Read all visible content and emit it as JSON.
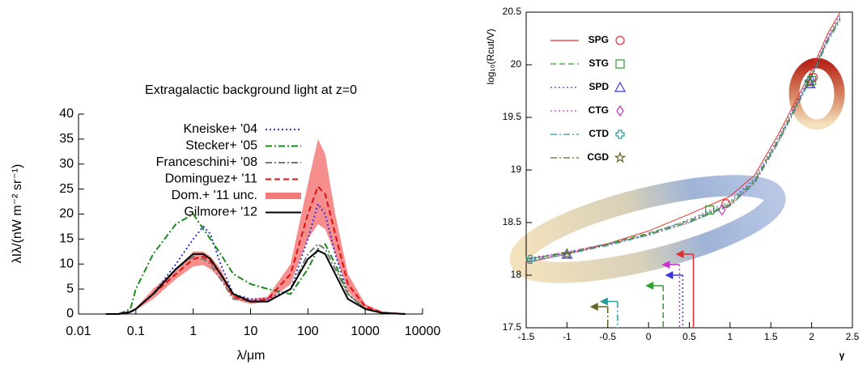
{
  "chart_data": [
    {
      "type": "line",
      "title": "Extragalactic background light at z=0",
      "xlabel": "λ/μm",
      "ylabel": "λIλ/(nW m⁻² sr⁻¹)",
      "xscale": "log",
      "xlim": [
        0.01,
        10000
      ],
      "xticks": [
        0.01,
        0.1,
        1,
        10,
        100,
        1000,
        10000
      ],
      "ylim": [
        0,
        40
      ],
      "yticks": [
        0,
        5,
        10,
        15,
        20,
        25,
        30,
        35,
        40
      ],
      "x": [
        0.03,
        0.05,
        0.08,
        0.1,
        0.2,
        0.5,
        1,
        1.5,
        2,
        3,
        5,
        10,
        20,
        50,
        100,
        150,
        200,
        300,
        500,
        1000,
        2000,
        5000
      ],
      "series": [
        {
          "name": "Kneiske+ '04",
          "color": "#3333dd",
          "style": "dotted",
          "values": [
            0,
            0,
            0.5,
            1,
            4,
            10,
            15,
            17.5,
            16,
            10,
            4,
            3,
            3,
            5,
            15,
            22,
            20,
            12,
            4,
            1,
            0.3,
            0
          ]
        },
        {
          "name": "Stecker+ '05",
          "color": "#1a8a1a",
          "style": "dashdot",
          "values": [
            0,
            0,
            1,
            5,
            12,
            18,
            20,
            17,
            15,
            12,
            8,
            6,
            5,
            4,
            9,
            13,
            14,
            10,
            4,
            1,
            0.2,
            0
          ]
        },
        {
          "name": "Franceschini+ '08",
          "color": "#777777",
          "style": "dashdot",
          "values": [
            0,
            0,
            0.5,
            1,
            4,
            9,
            11.5,
            11,
            10,
            7,
            3,
            2.5,
            2.5,
            5,
            12,
            14,
            13,
            9,
            4,
            1,
            0.2,
            0
          ]
        },
        {
          "name": "Dominguez+ '11",
          "color": "#dd1111",
          "style": "dashed",
          "values": [
            0,
            0,
            0.3,
            1,
            4,
            8,
            11,
            11.5,
            10.5,
            8,
            3.5,
            2.5,
            3,
            8,
            20,
            25.5,
            24,
            16,
            6,
            1.5,
            0.3,
            0
          ]
        },
        {
          "name": "Dom.+ '11 unc.",
          "color": "#f47a7a",
          "style": "band",
          "low": [
            0,
            0,
            0.2,
            0.8,
            3,
            7,
            9.5,
            9.8,
            9,
            7,
            3,
            2,
            2.5,
            6,
            15,
            18,
            17,
            12,
            4.5,
            1,
            0.2,
            0
          ],
          "high": [
            0,
            0,
            0.4,
            1.2,
            5,
            9,
            12.5,
            12.5,
            11.5,
            9,
            4,
            3,
            3.5,
            10,
            26,
            35,
            32,
            20,
            8,
            2,
            0.4,
            0
          ]
        },
        {
          "name": "Gilmore+ '12",
          "color": "#000000",
          "style": "solid",
          "values": [
            0,
            0,
            0.4,
            1,
            4,
            9,
            12,
            12,
            11,
            8,
            4,
            2.5,
            2.5,
            5,
            11,
            12.7,
            12,
            8,
            3,
            1,
            0.2,
            0
          ]
        }
      ]
    },
    {
      "type": "line",
      "xlabel": "γ",
      "ylabel": "log₁₀(Rcut/V)",
      "xlim": [
        -1.5,
        2.5
      ],
      "xticks": [
        -1.5,
        -1,
        -0.5,
        0,
        0.5,
        1,
        1.5,
        2,
        2.5
      ],
      "ylim": [
        17.5,
        20.5
      ],
      "yticks": [
        17.5,
        18,
        18.5,
        19,
        19.5,
        20,
        20.5
      ],
      "x": [
        -1.5,
        -1,
        -0.5,
        0,
        0.5,
        1,
        1.3,
        1.6,
        1.8,
        2,
        2.2,
        2.35
      ],
      "series": [
        {
          "name": "SPG",
          "color": "#e03030",
          "style": "solid",
          "marker": "circle",
          "values": [
            18.12,
            18.2,
            18.3,
            18.42,
            18.58,
            18.75,
            18.95,
            19.35,
            19.65,
            19.95,
            20.3,
            20.5
          ],
          "points_x": [
            0.95,
            2.02
          ],
          "points_y": [
            18.68,
            19.88
          ],
          "limit_x": 0.55,
          "limit_y": 18.2
        },
        {
          "name": "STG",
          "color": "#2ea02e",
          "style": "dashed",
          "marker": "square",
          "values": [
            18.15,
            18.22,
            18.3,
            18.4,
            18.52,
            18.68,
            18.9,
            19.3,
            19.6,
            19.9,
            20.25,
            20.45
          ],
          "points_x": [
            0.75,
            2.0
          ],
          "points_y": [
            18.62,
            19.85
          ],
          "limit_x": 0.18,
          "limit_y": 17.9
        },
        {
          "name": "SPD",
          "color": "#3a3ae0",
          "style": "dotted",
          "marker": "triangle",
          "values": [
            18.14,
            18.21,
            18.29,
            18.39,
            18.53,
            18.7,
            18.92,
            19.32,
            19.62,
            19.92,
            20.27,
            20.48
          ],
          "points_x": [
            -1.0,
            1.98
          ],
          "points_y": [
            18.2,
            19.82
          ],
          "limit_x": 0.42,
          "limit_y": 18.0
        },
        {
          "name": "CTG",
          "color": "#cc33cc",
          "style": "dotted",
          "marker": "diamond",
          "values": [
            18.16,
            18.22,
            18.3,
            18.38,
            18.5,
            18.66,
            18.88,
            19.28,
            19.58,
            19.9,
            20.25,
            20.45
          ],
          "points_x": [
            0.9,
            2.0
          ],
          "points_y": [
            18.62,
            19.85
          ],
          "limit_x": 0.38,
          "limit_y": 18.1
        },
        {
          "name": "CTD",
          "color": "#2a9a9a",
          "style": "dashdot",
          "marker": "cross",
          "values": [
            18.13,
            18.2,
            18.28,
            18.38,
            18.5,
            18.66,
            18.87,
            19.27,
            19.57,
            19.88,
            20.22,
            20.42
          ],
          "points_x": [
            -1.45,
            1.97
          ],
          "points_y": [
            18.15,
            19.84
          ],
          "limit_x": -0.38,
          "limit_y": 17.75
        },
        {
          "name": "CGD",
          "color": "#666622",
          "style": "dashdot",
          "marker": "star",
          "values": [
            18.15,
            18.21,
            18.29,
            18.39,
            18.51,
            18.67,
            18.89,
            19.29,
            19.6,
            19.9,
            20.24,
            20.44
          ],
          "points_x": [
            -1.0,
            1.98
          ],
          "points_y": [
            18.2,
            19.83
          ],
          "limit_x": -0.5,
          "limit_y": 17.7
        }
      ]
    }
  ]
}
